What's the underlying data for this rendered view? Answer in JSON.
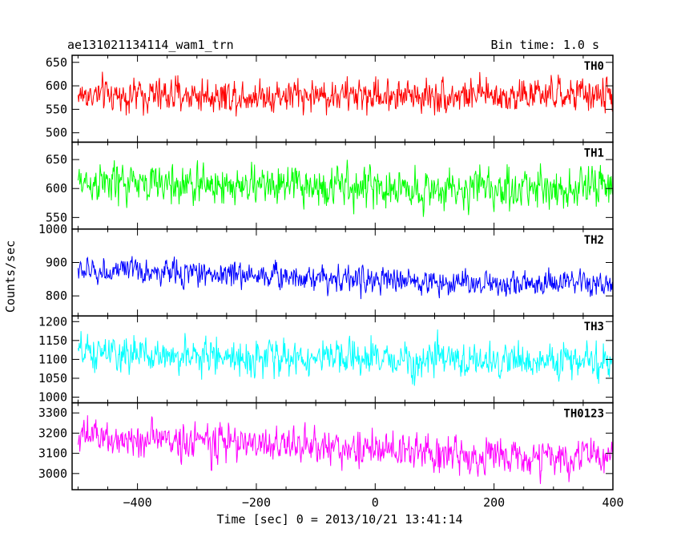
{
  "header": {
    "title": "ae131021134114_wam1_trn",
    "bin_time": "Bin time: 1.0 s"
  },
  "chart_data": {
    "type": "line",
    "xlabel": "Time [sec] 0 = 2013/10/21 13:41:14",
    "ylabel": "Counts/sec",
    "xlim": [
      -510,
      400
    ],
    "x_ticks": [
      -400,
      -200,
      0,
      200,
      400
    ],
    "x_tick_labels": [
      "−400",
      "−200",
      "0",
      "200",
      "400"
    ],
    "x_start": -500,
    "x_end": 400,
    "bin": 1.0,
    "panels": [
      {
        "name": "TH0",
        "color": "#ff0000",
        "ylim": [
          480,
          665
        ],
        "yticks": [
          500,
          550,
          600,
          650
        ],
        "ytick_labels": [
          "500",
          "550",
          "600",
          "650"
        ],
        "level_points": [
          [
            -500,
            580
          ],
          [
            400,
            580
          ]
        ],
        "noise": 25
      },
      {
        "name": "TH1",
        "color": "#00ff00",
        "ylim": [
          530,
          680
        ],
        "yticks": [
          550,
          600,
          650
        ],
        "ytick_labels": [
          "550",
          "600",
          "650"
        ],
        "level_points": [
          [
            -500,
            610
          ],
          [
            -300,
            606
          ],
          [
            -100,
            604
          ],
          [
            100,
            598
          ],
          [
            400,
            603
          ]
        ],
        "noise": 24
      },
      {
        "name": "TH2",
        "color": "#0000ff",
        "ylim": [
          740,
          1000
        ],
        "yticks": [
          800,
          900,
          1000
        ],
        "ytick_labels": [
          "800",
          "900",
          "1000"
        ],
        "level_points": [
          [
            -500,
            875
          ],
          [
            -300,
            868
          ],
          [
            -100,
            858
          ],
          [
            0,
            845
          ],
          [
            200,
            838
          ],
          [
            400,
            832
          ]
        ],
        "noise": 27
      },
      {
        "name": "TH3",
        "color": "#00ffff",
        "ylim": [
          985,
          1215
        ],
        "yticks": [
          1000,
          1050,
          1100,
          1150,
          1200
        ],
        "ytick_labels": [
          "1000",
          "1050",
          "1100",
          "1150",
          "1200"
        ],
        "level_points": [
          [
            -500,
            1115
          ],
          [
            -300,
            1108
          ],
          [
            -100,
            1102
          ],
          [
            100,
            1098
          ],
          [
            400,
            1093
          ]
        ],
        "noise": 32
      },
      {
        "name": "TH0123",
        "color": "#ff00ff",
        "ylim": [
          2920,
          3350
        ],
        "yticks": [
          3000,
          3100,
          3200,
          3300
        ],
        "ytick_labels": [
          "3000",
          "3100",
          "3200",
          "3300"
        ],
        "level_points": [
          [
            -500,
            3180
          ],
          [
            -300,
            3160
          ],
          [
            -100,
            3135
          ],
          [
            100,
            3100
          ],
          [
            200,
            3085
          ],
          [
            300,
            3075
          ],
          [
            400,
            3090
          ]
        ],
        "noise": 62
      }
    ]
  }
}
